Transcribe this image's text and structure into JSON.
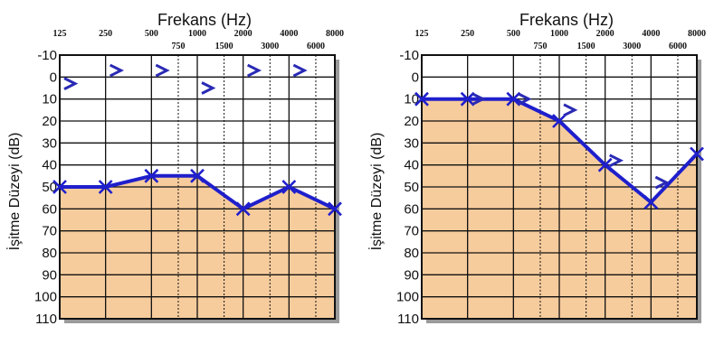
{
  "chart_data": [
    {
      "type": "line",
      "xlabel": "Frekans (Hz)",
      "ylabel": "İşitme Düzeyi (dB)",
      "x_octave_ticks": [
        "125",
        "250",
        "500",
        "1000",
        "2000",
        "4000",
        "8000"
      ],
      "x_interoctave_ticks": [
        "750",
        "1500",
        "3000",
        "6000"
      ],
      "y_ticks": [
        "-10",
        "0",
        "10",
        "20",
        "30",
        "40",
        "50",
        "60",
        "70",
        "80",
        "90",
        "100",
        "110"
      ],
      "ylim": [
        -10,
        110
      ],
      "y_inverted": true,
      "grid": true,
      "colors": {
        "line": "#1f1fcc",
        "fill": "#f7cc9d",
        "bone_marker": "#2a2ab5"
      },
      "series": [
        {
          "marker": "x",
          "x": [
            125,
            250,
            500,
            1000,
            2000,
            4000,
            8000
          ],
          "values": [
            50,
            50,
            45,
            45,
            60,
            50,
            60
          ]
        },
        {
          "marker": ">",
          "x": [
            125,
            250,
            500,
            1000,
            2000,
            4000
          ],
          "values": [
            3,
            -3,
            -3,
            5,
            -3,
            -3
          ]
        }
      ]
    },
    {
      "type": "line",
      "xlabel": "Frekans (Hz)",
      "ylabel": "İşitme Düzeyi (dB)",
      "x_octave_ticks": [
        "125",
        "250",
        "500",
        "1000",
        "2000",
        "4000",
        "8000"
      ],
      "x_interoctave_ticks": [
        "750",
        "1500",
        "3000",
        "6000"
      ],
      "y_ticks": [
        "-10",
        "0",
        "10",
        "20",
        "30",
        "40",
        "50",
        "60",
        "70",
        "80",
        "90",
        "100",
        "110"
      ],
      "ylim": [
        -10,
        110
      ],
      "y_inverted": true,
      "grid": true,
      "colors": {
        "line": "#1f1fcc",
        "fill": "#f7cc9d",
        "bone_marker": "#2a2ab5"
      },
      "series": [
        {
          "marker": "x",
          "x": [
            125,
            250,
            500,
            1000,
            2000,
            4000,
            8000
          ],
          "values": [
            10,
            10,
            10,
            20,
            40,
            57,
            35
          ]
        },
        {
          "marker": ">",
          "x": [
            250,
            500,
            1000,
            2000,
            4000
          ],
          "values": [
            10,
            10,
            15,
            38,
            48
          ]
        }
      ]
    }
  ]
}
